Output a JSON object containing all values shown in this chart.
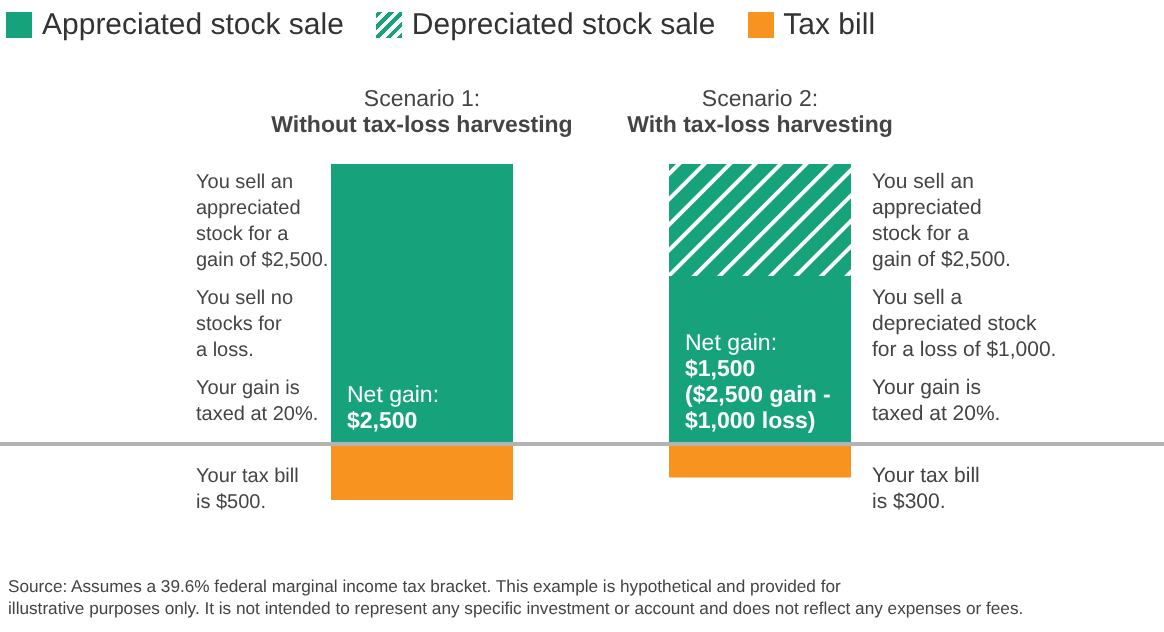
{
  "chart_data": {
    "type": "bar",
    "stacked": true,
    "legend": "top left",
    "data_labels": false,
    "categories": [
      "Scenario 1:\nWithout tax-loss harvesting",
      "Scenario 2:\nWith tax-loss harvesting"
    ],
    "series": [
      {
        "name": "Appreciated stock sale",
        "color": "#16a37c",
        "values": [
          2500,
          1500
        ],
        "value_labels": [
          "Net gain:\n$2,500",
          "Net gain:\n$1,500\n($2,500 gain -\n$1,000 loss)"
        ]
      },
      {
        "name": "Depreciated stock sale",
        "color": "#16a37c",
        "values": [
          null,
          1000
        ]
      },
      {
        "name": "Tax bill",
        "color": "#f7931e",
        "values": [
          -500,
          -300
        ]
      }
    ],
    "annotations": [
      "You sell an\nappreciated\nstock for a\ngain of $2,500.",
      "You sell no\nstocks for\na loss.",
      "Your gain is\ntaxed at 20%.",
      "Your tax bill\nis $500.",
      "You sell an\nappreciated\nstock for a\ngain of $2,500.",
      "You sell a\ndepreciated stock\nfor a loss of $1,000.",
      "Your gain is\ntaxed at 20%.",
      "Your tax bill\nis $300.",
      "Source: Assumes a 39.6% federal marginal income tax bracket. This example is hypothetical and provided for\nillustrative purposes only. It is not intended to represent any specific investment or account and does not reflect any expenses or fees."
    ]
  }
}
